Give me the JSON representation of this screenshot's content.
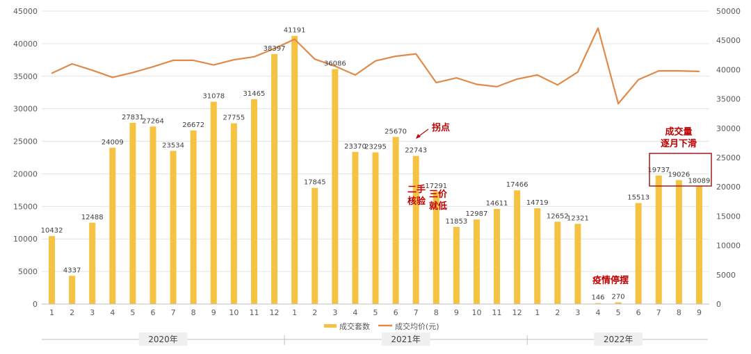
{
  "chart_data": {
    "type": "bar",
    "categories": [
      "1",
      "2",
      "3",
      "4",
      "5",
      "6",
      "7",
      "8",
      "9",
      "10",
      "11",
      "12",
      "1",
      "2",
      "3",
      "4",
      "5",
      "6",
      "7",
      "8",
      "9",
      "10",
      "11",
      "12",
      "1",
      "2",
      "3",
      "4",
      "5",
      "6",
      "7",
      "8",
      "9"
    ],
    "series": [
      {
        "name": "成交套数",
        "type": "bar",
        "axis": "left",
        "color": "#f5c242",
        "values": [
          10432,
          4337,
          12488,
          24009,
          27831,
          27264,
          23534,
          26672,
          31078,
          27755,
          31465,
          38397,
          41191,
          17845,
          36086,
          23370,
          23295,
          25670,
          22743,
          17291,
          11853,
          12987,
          14611,
          17466,
          14719,
          12652,
          12321,
          146,
          270,
          15513,
          19737,
          19026,
          18089
        ]
      },
      {
        "name": "成交均价(元)",
        "type": "line",
        "axis": "right",
        "color": "#e08a4a",
        "values": [
          39400,
          41000,
          39900,
          38700,
          39500,
          40500,
          41600,
          41600,
          40800,
          41700,
          42200,
          43600,
          45200,
          41800,
          40600,
          39100,
          41500,
          42300,
          42700,
          37800,
          38600,
          37500,
          37100,
          38400,
          39100,
          37400,
          39600,
          47100,
          34200,
          38300,
          39800,
          39800,
          39700
        ]
      }
    ],
    "ylim": [
      0,
      45000
    ],
    "y2lim": [
      0,
      50000
    ],
    "yticks": [
      "0",
      "5000",
      "10000",
      "15000",
      "20000",
      "25000",
      "30000",
      "35000",
      "40000",
      "45000"
    ],
    "y2ticks": [
      "0",
      "5000",
      "10000",
      "15000",
      "20000",
      "25000",
      "30000",
      "35000",
      "40000",
      "45000",
      "50000"
    ],
    "years": [
      {
        "label": "2020年",
        "start": 0,
        "end": 11
      },
      {
        "label": "2021年",
        "start": 12,
        "end": 23
      },
      {
        "label": "2022年",
        "start": 24,
        "end": 32
      }
    ],
    "legend_position": "bottom",
    "grid": true,
    "annotations": {
      "turning_point": "拐点",
      "note_a": [
        "二手",
        "核验"
      ],
      "note_b": [
        "三价",
        "就低"
      ],
      "covid": "疫情停摆",
      "decline": [
        "成交量",
        "逐月下滑"
      ]
    }
  }
}
